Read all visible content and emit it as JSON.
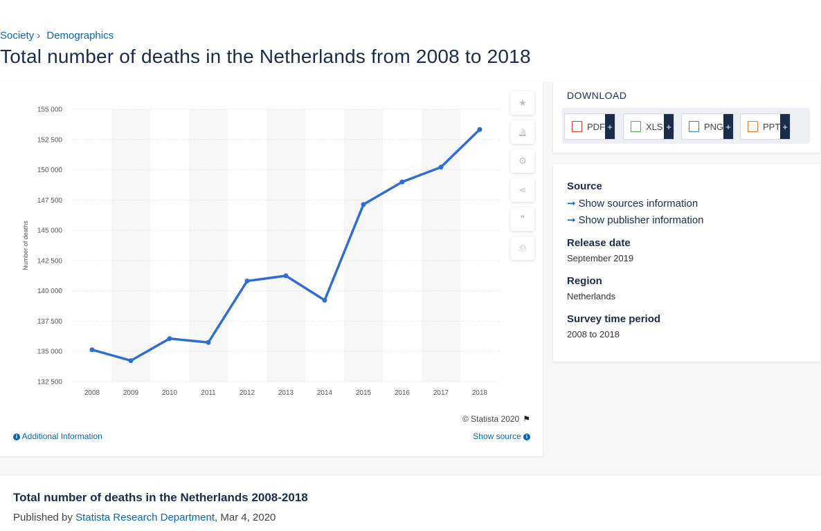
{
  "breadcrumb": {
    "items": [
      "Society",
      "Demographics"
    ],
    "separator": "›"
  },
  "page_title": "Total number of deaths in the Netherlands from 2008 to 2018",
  "tools": [
    {
      "icon": "star-icon",
      "glyph": "★"
    },
    {
      "icon": "bell-icon",
      "glyph": "🔔"
    },
    {
      "icon": "gear-icon",
      "glyph": "⚙"
    },
    {
      "icon": "share-icon",
      "glyph": "⋖"
    },
    {
      "icon": "quote-icon",
      "glyph": "❞"
    },
    {
      "icon": "print-icon",
      "glyph": "⎙"
    }
  ],
  "chart_data": {
    "type": "line",
    "categories": [
      "2008",
      "2009",
      "2010",
      "2011",
      "2012",
      "2013",
      "2014",
      "2015",
      "2016",
      "2017",
      "2018"
    ],
    "series": [
      {
        "values": [
          135136,
          134235,
          136058,
          135741,
          140813,
          141245,
          139223,
          147134,
          148997,
          150214,
          153328
        ]
      }
    ],
    "ylabel": "Number of deaths",
    "xlabel": "",
    "ylim": [
      132500,
      155000
    ],
    "yticks": [
      132500,
      135000,
      137500,
      140000,
      142500,
      145000,
      147500,
      150000,
      152500,
      155000
    ],
    "ytick_labels": [
      "132 500",
      "135 000",
      "137 500",
      "140 000",
      "142 500",
      "145 000",
      "147 500",
      "150 000",
      "152 500",
      "155 000"
    ],
    "grid": true,
    "line_color": "#2e6ed1"
  },
  "copyright": "© Statista 2020",
  "additional_info": "Additional Information",
  "show_source": "Show source",
  "download": {
    "title": "DOWNLOAD",
    "buttons": [
      {
        "label": "PDF",
        "plus": "+",
        "color": "#d9372b"
      },
      {
        "label": "XLS",
        "plus": "+",
        "color": "#4caf50"
      },
      {
        "label": "PNG",
        "plus": "+",
        "color": "#2e7bd6"
      },
      {
        "label": "PPT",
        "plus": "+",
        "color": "#e8762c"
      }
    ]
  },
  "info": {
    "source_label": "Source",
    "show_sources": "Show sources information",
    "show_publisher": "Show publisher information",
    "release_label": "Release date",
    "release_value": "September 2019",
    "region_label": "Region",
    "region_value": "Netherlands",
    "survey_label": "Survey time period",
    "survey_value": "2008 to 2018"
  },
  "description": {
    "title": "Total number of deaths in the Netherlands 2008-2018",
    "published_by": "Published by",
    "publisher": "Statista Research Department",
    "date": ", Mar 4, 2020"
  }
}
